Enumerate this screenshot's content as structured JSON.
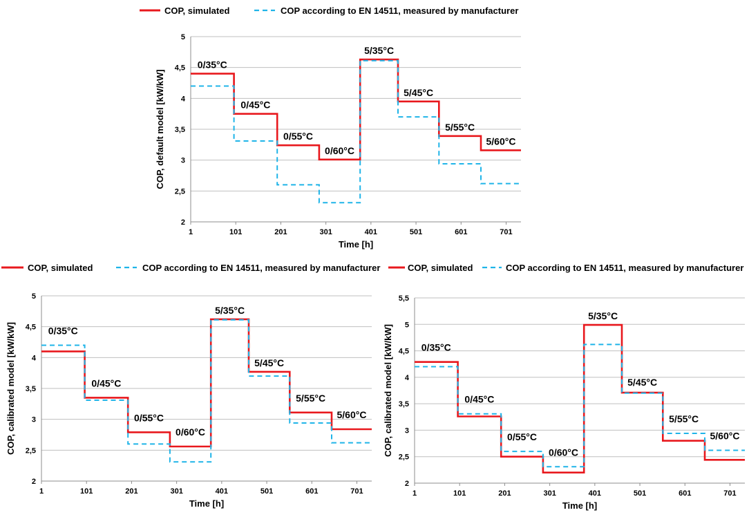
{
  "legend": {
    "simulated": "COP, simulated",
    "measured": "COP according to EN 14511, measured by manufacturer"
  },
  "colors": {
    "simulated": "#e8181d",
    "measured": "#1fb4e8",
    "grid": "#bfbfbf"
  },
  "chart_data": [
    {
      "type": "line",
      "ylabel": "COP, default model [kW/kW]",
      "xlabel": "Time [h]",
      "ylim": [
        2,
        5
      ],
      "yticks": [
        "2",
        "2,5",
        "3",
        "3,5",
        "4",
        "4,5",
        "5"
      ],
      "xlim": [
        1,
        734
      ],
      "xticks": [
        "1",
        "101",
        "201",
        "301",
        "401",
        "501",
        "601",
        "701"
      ],
      "breaks": [
        1,
        97,
        193,
        286,
        377,
        461,
        552,
        645,
        734
      ],
      "segment_labels": [
        "0/35°C",
        "0/45°C",
        "0/55°C",
        "0/60°C",
        "5/35°C",
        "5/45°C",
        "5/55°C",
        "5/60°C"
      ],
      "series": [
        {
          "name": "COP, simulated",
          "values": [
            4.4,
            3.75,
            3.24,
            3.01,
            4.63,
            3.95,
            3.39,
            3.16
          ]
        },
        {
          "name": "COP according to EN 14511, measured by manufacturer",
          "values": [
            4.2,
            3.31,
            2.6,
            2.31,
            4.61,
            3.7,
            2.94,
            2.62
          ]
        }
      ]
    },
    {
      "type": "line",
      "ylabel": "COP, calibrated model [kW/kW]",
      "xlabel": "Time [h]",
      "ylim": [
        2,
        5
      ],
      "yticks": [
        "2",
        "2,5",
        "3",
        "3,5",
        "4",
        "4,5",
        "5"
      ],
      "xlim": [
        1,
        734
      ],
      "xticks": [
        "1",
        "101",
        "201",
        "301",
        "401",
        "501",
        "601",
        "701"
      ],
      "breaks": [
        1,
        97,
        193,
        286,
        377,
        461,
        552,
        645,
        734
      ],
      "segment_labels": [
        "0/35°C",
        "0/45°C",
        "0/55°C",
        "0/60°C",
        "5/35°C",
        "5/45°C",
        "5/55°C",
        "5/60°C"
      ],
      "series": [
        {
          "name": "COP, simulated",
          "values": [
            4.1,
            3.35,
            2.79,
            2.56,
            4.62,
            3.77,
            3.11,
            2.84
          ]
        },
        {
          "name": "COP according to EN 14511, measured by manufacturer",
          "values": [
            4.2,
            3.31,
            2.6,
            2.31,
            4.61,
            3.7,
            2.94,
            2.62
          ]
        }
      ]
    },
    {
      "type": "line",
      "ylabel": "COP, calibrated model [kW/kW]",
      "xlabel": "Time [h]",
      "ylim": [
        2,
        5.5
      ],
      "yticks": [
        "2",
        "2,5",
        "3",
        "3,5",
        "4",
        "4,5",
        "5",
        "5,5"
      ],
      "xlim": [
        1,
        734
      ],
      "xticks": [
        "1",
        "101",
        "201",
        "301",
        "401",
        "501",
        "601",
        "701"
      ],
      "breaks": [
        1,
        97,
        193,
        286,
        377,
        461,
        552,
        645,
        734
      ],
      "segment_labels": [
        "0/35°C",
        "0/45°C",
        "0/55°C",
        "0/60°C",
        "5/35°C",
        "5/45°C",
        "5/55°C",
        "5/60°C"
      ],
      "series": [
        {
          "name": "COP, simulated",
          "values": [
            4.29,
            3.26,
            2.5,
            2.2,
            4.99,
            3.71,
            2.8,
            2.44
          ]
        },
        {
          "name": "COP according to EN 14511, measured by manufacturer",
          "values": [
            4.2,
            3.31,
            2.6,
            2.31,
            4.62,
            3.7,
            2.94,
            2.62
          ]
        }
      ]
    }
  ]
}
